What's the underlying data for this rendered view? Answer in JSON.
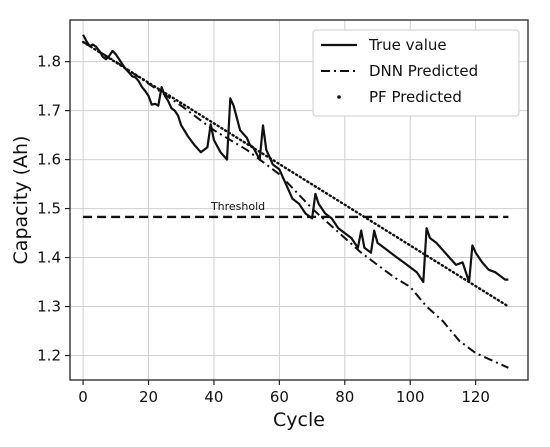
{
  "chart_data": {
    "type": "line",
    "xlabel": "Cycle",
    "ylabel": "Capacity (Ah)",
    "xlim": [
      -4,
      136
    ],
    "ylim": [
      1.15,
      1.885
    ],
    "xticks": [
      0,
      20,
      40,
      60,
      80,
      100,
      120
    ],
    "yticks": [
      1.2,
      1.3,
      1.4,
      1.5,
      1.6,
      1.7,
      1.8
    ],
    "grid": true,
    "legend_position": "top-right",
    "annotation": {
      "text": "Threshold",
      "x": 40,
      "y": 1.505
    },
    "series": [
      {
        "name": "True value",
        "style": "solid",
        "x": [
          0,
          1,
          2,
          3,
          4,
          5,
          6,
          7,
          8,
          9,
          10,
          11,
          12,
          13,
          14,
          15,
          16,
          17,
          18,
          19,
          20,
          21,
          22,
          23,
          24,
          25,
          26,
          27,
          28,
          29,
          30,
          32,
          34,
          36,
          38,
          39,
          40,
          42,
          44,
          45,
          46,
          48,
          50,
          51,
          52,
          54,
          55,
          56,
          57,
          58,
          60,
          62,
          64,
          66,
          68,
          70,
          71,
          72,
          74,
          76,
          78,
          80,
          82,
          84,
          85,
          86,
          88,
          89,
          90,
          92,
          94,
          96,
          98,
          100,
          102,
          104,
          105,
          106,
          108,
          110,
          112,
          114,
          116,
          118,
          119,
          120,
          122,
          124,
          126,
          128,
          129,
          130
        ],
        "y": [
          1.855,
          1.842,
          1.832,
          1.835,
          1.83,
          1.822,
          1.81,
          1.805,
          1.812,
          1.822,
          1.815,
          1.805,
          1.795,
          1.785,
          1.778,
          1.77,
          1.768,
          1.76,
          1.748,
          1.74,
          1.73,
          1.712,
          1.714,
          1.71,
          1.748,
          1.73,
          1.72,
          1.705,
          1.7,
          1.69,
          1.67,
          1.648,
          1.63,
          1.615,
          1.625,
          1.672,
          1.64,
          1.615,
          1.6,
          1.725,
          1.71,
          1.66,
          1.645,
          1.63,
          1.625,
          1.6,
          1.67,
          1.62,
          1.605,
          1.59,
          1.58,
          1.55,
          1.52,
          1.51,
          1.49,
          1.48,
          1.53,
          1.51,
          1.49,
          1.48,
          1.46,
          1.45,
          1.44,
          1.42,
          1.455,
          1.42,
          1.41,
          1.455,
          1.43,
          1.42,
          1.41,
          1.4,
          1.39,
          1.38,
          1.37,
          1.35,
          1.46,
          1.44,
          1.43,
          1.415,
          1.4,
          1.385,
          1.39,
          1.35,
          1.425,
          1.41,
          1.39,
          1.375,
          1.37,
          1.36,
          1.355,
          1.355
        ]
      },
      {
        "name": "DNN Predicted",
        "style": "dashdot",
        "x": [
          0,
          10,
          20,
          30,
          40,
          50,
          60,
          70,
          75,
          80,
          85,
          90,
          95,
          100,
          105,
          110,
          115,
          120,
          125,
          130
        ],
        "y": [
          1.84,
          1.8,
          1.755,
          1.71,
          1.66,
          1.62,
          1.57,
          1.5,
          1.47,
          1.44,
          1.41,
          1.385,
          1.36,
          1.34,
          1.3,
          1.27,
          1.23,
          1.205,
          1.19,
          1.175
        ]
      },
      {
        "name": "PF Predicted",
        "style": "dotted",
        "x": [
          0,
          130
        ],
        "y": [
          1.84,
          1.3
        ]
      },
      {
        "name": "",
        "style": "dashed",
        "x": [
          0,
          130
        ],
        "y": [
          1.483,
          1.483
        ]
      }
    ]
  }
}
